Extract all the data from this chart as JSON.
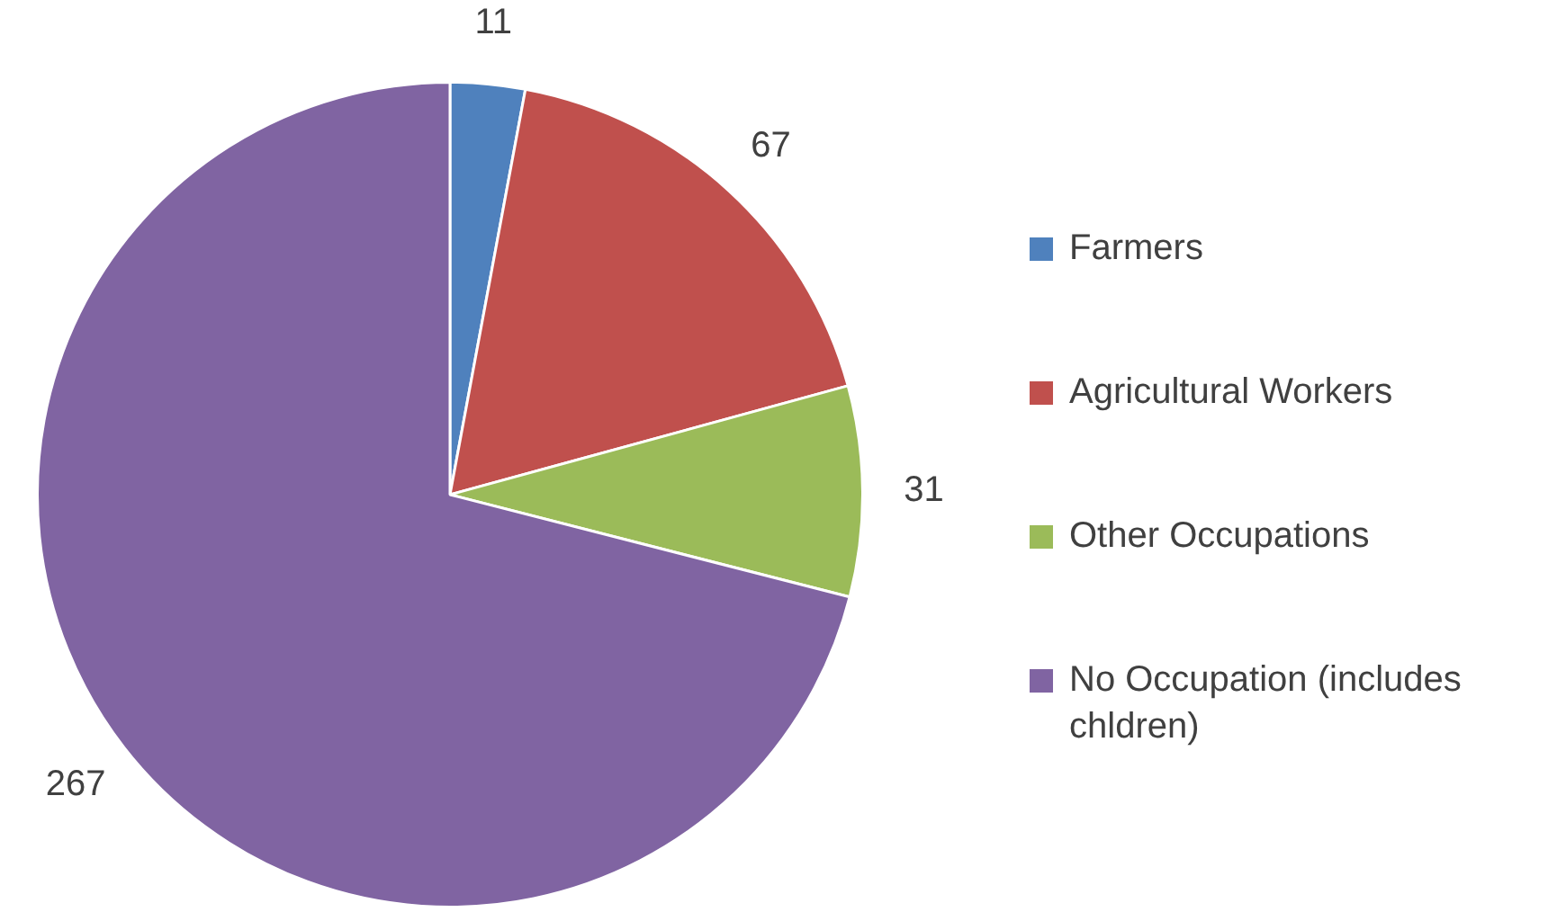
{
  "chart_data": {
    "type": "pie",
    "categories": [
      "Farmers",
      "Agricultural Workers",
      "Other Occupations",
      "No Occupation (includes chldren)"
    ],
    "values": [
      11,
      67,
      31,
      267
    ],
    "colors": [
      "#4f81bd",
      "#c0504d",
      "#9bbb59",
      "#8064a2"
    ],
    "data_labels": true,
    "legend": "right"
  }
}
